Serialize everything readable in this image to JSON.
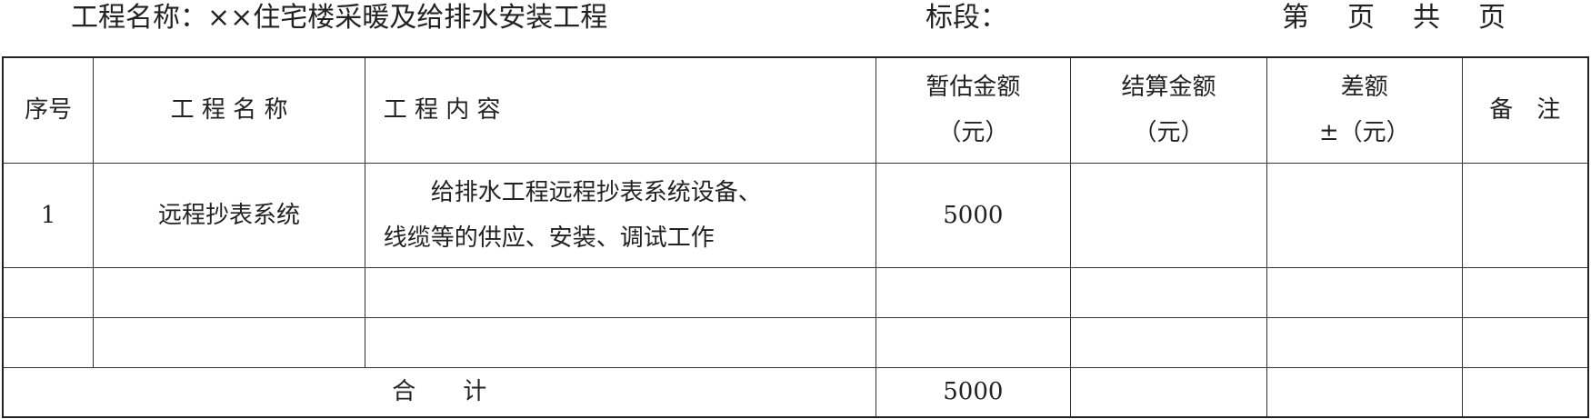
{
  "header": {
    "project_name": "工程名称：××住宅楼采暖及给排水安装工程",
    "section": "标段：",
    "page_info": "第　页　共　页"
  },
  "table": {
    "columns": [
      "序号",
      "工 程 名 称",
      "工 程 内 容",
      "暂估金额",
      "结算金额",
      "差额",
      "备　注"
    ],
    "column_units": [
      "",
      "",
      "",
      "（元）",
      "（元）",
      "±（元）",
      ""
    ],
    "rows": [
      {
        "no": "1",
        "name": "远程抄表系统",
        "content_line1": "　　给排水工程远程抄表系统设备、",
        "content_line2": "线缆等的供应、安装、调试工作",
        "estimate": "5000",
        "settlement": "",
        "difference": "",
        "remark": ""
      },
      {
        "no": "",
        "name": "",
        "content_line1": "",
        "content_line2": "",
        "estimate": "",
        "settlement": "",
        "difference": "",
        "remark": ""
      },
      {
        "no": "",
        "name": "",
        "content_line1": "",
        "content_line2": "",
        "estimate": "",
        "settlement": "",
        "difference": "",
        "remark": ""
      }
    ],
    "total": {
      "label": "合　　计",
      "estimate": "5000"
    }
  }
}
